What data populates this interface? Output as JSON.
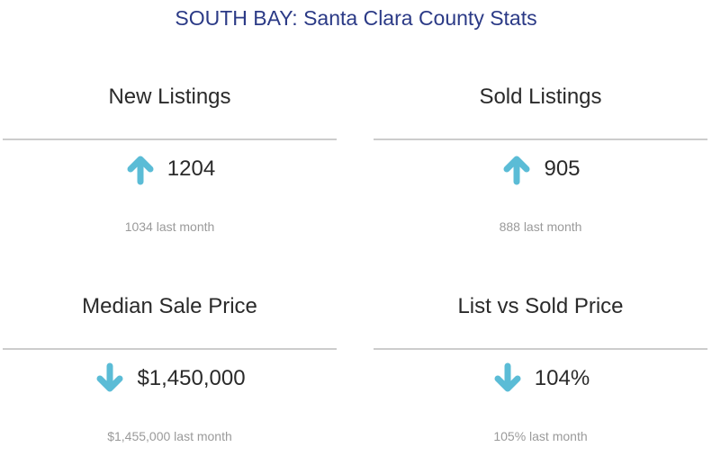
{
  "page": {
    "title": "SOUTH BAY: Santa Clara County Stats"
  },
  "colors": {
    "title": "#2b3a86",
    "arrow": "#5bbcd6",
    "divider": "#cccccc",
    "subtext": "#9a9a9a"
  },
  "cards": [
    {
      "title": "New Listings",
      "trend_icon": "arrow-up-icon",
      "value": "1204",
      "previous": "1034 last month"
    },
    {
      "title": "Sold Listings",
      "trend_icon": "arrow-up-icon",
      "value": "905",
      "previous": "888 last month"
    },
    {
      "title": "Median Sale Price",
      "trend_icon": "arrow-down-icon",
      "value": "$1,450,000",
      "previous": "$1,455,000 last month"
    },
    {
      "title": "List vs Sold Price",
      "trend_icon": "arrow-down-icon",
      "value": "104%",
      "previous": "105% last month"
    }
  ]
}
